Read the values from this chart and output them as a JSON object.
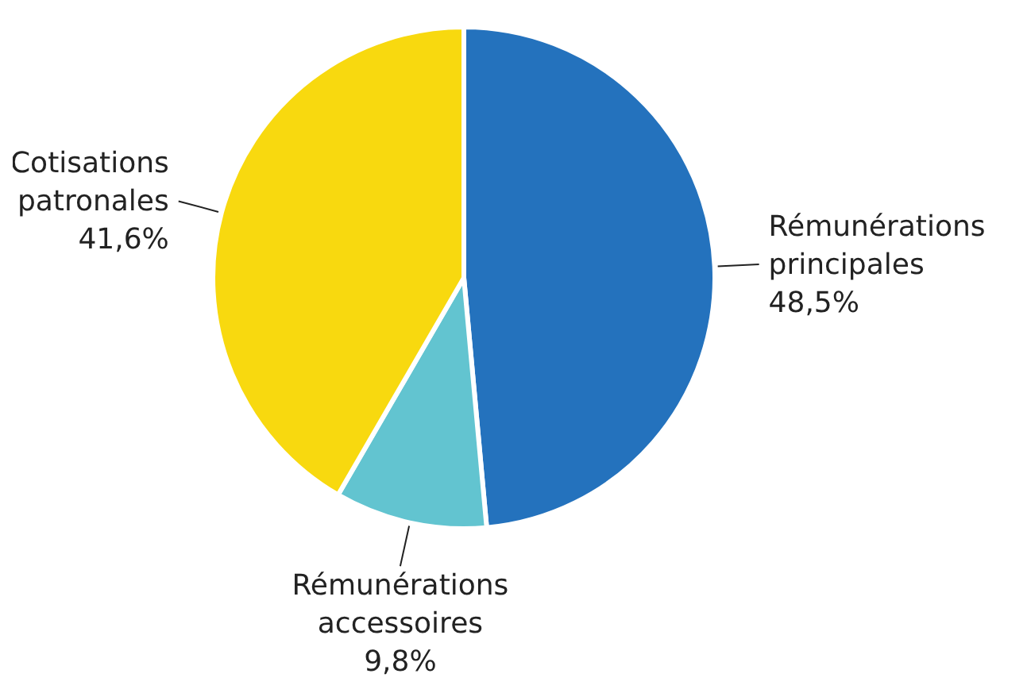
{
  "chart_data": {
    "type": "pie",
    "categories": [
      "Rémunérations principales",
      "Rémunérations accessoires",
      "Cotisations patronales"
    ],
    "values": [
      48.5,
      9.8,
      41.6
    ],
    "value_labels": [
      "48,5%",
      "9,8%",
      "41,6%"
    ],
    "colors": [
      "#2472bd",
      "#62c4d0",
      "#f8d90f"
    ],
    "legend": false
  }
}
